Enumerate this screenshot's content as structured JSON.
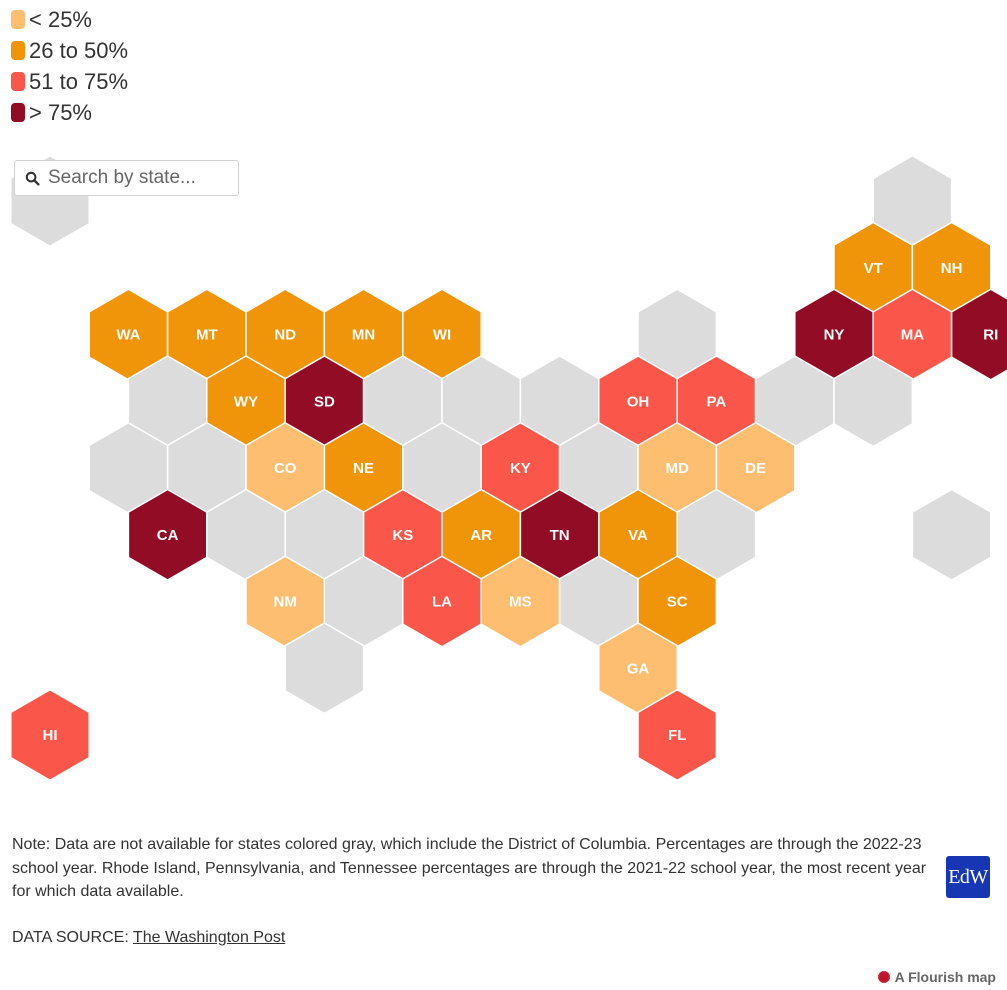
{
  "legend": [
    {
      "label": "< 25%",
      "color": "#fdbf6f"
    },
    {
      "label": "26 to 50%",
      "color": "#f09509"
    },
    {
      "label": "51 to 75%",
      "color": "#fa5649"
    },
    {
      "label": "> 75%",
      "color": "#920c26"
    }
  ],
  "no_data_color": "#dcdcdc",
  "search": {
    "placeholder": "Search by state..."
  },
  "chart_data": {
    "type": "hex-tile-map",
    "rows": [
      {
        "cells": [
          [
            "",
            "none"
          ],
          null,
          null,
          null,
          null,
          null,
          null,
          null,
          null,
          null,
          null,
          [
            "",
            "none"
          ]
        ]
      },
      {
        "cells": [
          null,
          null,
          null,
          null,
          null,
          null,
          null,
          null,
          null,
          null,
          [
            "VT",
            "26 to 50%"
          ],
          [
            "NH",
            "26 to 50%"
          ]
        ]
      },
      {
        "cells": [
          null,
          [
            "WA",
            "26 to 50%"
          ],
          [
            "MT",
            "26 to 50%"
          ],
          [
            "ND",
            "26 to 50%"
          ],
          [
            "MN",
            "26 to 50%"
          ],
          [
            "WI",
            "26 to 50%"
          ],
          null,
          null,
          [
            "",
            "none"
          ],
          null,
          [
            "NY",
            "> 75%"
          ],
          [
            "MA",
            "51 to 75%"
          ],
          [
            "RI",
            "> 75%"
          ]
        ]
      },
      {
        "cells": [
          null,
          [
            "",
            "none"
          ],
          [
            "WY",
            "26 to 50%"
          ],
          [
            "SD",
            "> 75%"
          ],
          [
            "",
            "none"
          ],
          [
            "",
            "none"
          ],
          [
            "",
            "none"
          ],
          [
            "OH",
            "51 to 75%"
          ],
          [
            "PA",
            "51 to 75%"
          ],
          [
            "",
            "none"
          ],
          [
            "",
            "none"
          ]
        ]
      },
      {
        "cells": [
          null,
          [
            "",
            "none"
          ],
          [
            "",
            "none"
          ],
          [
            "CO",
            "< 25%"
          ],
          [
            "NE",
            "26 to 50%"
          ],
          [
            "",
            "none"
          ],
          [
            "KY",
            "51 to 75%"
          ],
          [
            "",
            "none"
          ],
          [
            "MD",
            "< 25%"
          ],
          [
            "DE",
            "< 25%"
          ]
        ]
      },
      {
        "cells": [
          null,
          [
            "CA",
            "> 75%"
          ],
          [
            "",
            "none"
          ],
          [
            "",
            "none"
          ],
          [
            "KS",
            "51 to 75%"
          ],
          [
            "AR",
            "26 to 50%"
          ],
          [
            "TN",
            "> 75%"
          ],
          [
            "VA",
            "26 to 50%"
          ],
          [
            "",
            "none"
          ],
          null,
          null,
          [
            "",
            "none"
          ]
        ]
      },
      {
        "cells": [
          null,
          null,
          null,
          [
            "NM",
            "< 25%"
          ],
          [
            "",
            "none"
          ],
          [
            "LA",
            "51 to 75%"
          ],
          [
            "MS",
            "< 25%"
          ],
          [
            "",
            "none"
          ],
          [
            "SC",
            "26 to 50%"
          ]
        ]
      },
      {
        "cells": [
          null,
          null,
          null,
          [
            "",
            "none"
          ],
          null,
          null,
          null,
          [
            "GA",
            "< 25%"
          ]
        ]
      },
      {
        "cells": [
          [
            "HI",
            "51 to 75%"
          ],
          null,
          null,
          null,
          null,
          null,
          null,
          null,
          [
            "FL",
            "51 to 75%"
          ]
        ]
      }
    ]
  },
  "note": "Note: Data are not available for states colored gray, which include the District of Columbia. Percentages are through the 2022-23 school year. Rhode Island, Pennsylvania, and Tennessee percentages are through the 2021-22 school year, the most recent year for which data available.",
  "source": {
    "prefix": "DATA SOURCE: ",
    "link_text": "The Washington Post"
  },
  "logo_text": "EdW",
  "credit": "A Flourish map"
}
